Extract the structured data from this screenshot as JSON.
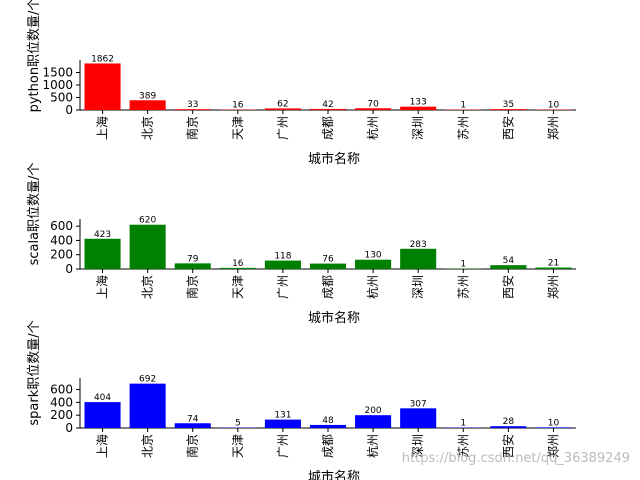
{
  "chart_data": [
    {
      "type": "bar",
      "categories": [
        "上海",
        "北京",
        "南京",
        "天津",
        "广州",
        "成都",
        "杭州",
        "深圳",
        "苏州",
        "西安",
        "郑州"
      ],
      "values": [
        1862,
        389,
        33,
        16,
        62,
        42,
        70,
        133,
        1,
        35,
        10
      ],
      "xlabel": "城市名称",
      "ylabel": "python职位数量/个",
      "yticks": [
        0,
        500,
        1000,
        1500
      ],
      "ylim": [
        0,
        2000
      ],
      "color": "#ff0000",
      "grid": false
    },
    {
      "type": "bar",
      "categories": [
        "上海",
        "北京",
        "南京",
        "天津",
        "广州",
        "成都",
        "杭州",
        "深圳",
        "苏州",
        "西安",
        "郑州"
      ],
      "values": [
        423,
        620,
        79,
        16,
        118,
        76,
        130,
        283,
        1,
        54,
        21
      ],
      "xlabel": "城市名称",
      "ylabel": "scala职位数量/个",
      "yticks": [
        0,
        200,
        400,
        600
      ],
      "ylim": [
        0,
        700
      ],
      "color": "#008000",
      "grid": false
    },
    {
      "type": "bar",
      "categories": [
        "上海",
        "北京",
        "南京",
        "天津",
        "广州",
        "成都",
        "杭州",
        "深圳",
        "苏州",
        "西安",
        "郑州"
      ],
      "values": [
        404,
        692,
        74,
        5,
        131,
        48,
        200,
        307,
        1,
        28,
        10
      ],
      "xlabel": "城市名称",
      "ylabel": "spark职位数量/个",
      "yticks": [
        0,
        200,
        400,
        600
      ],
      "ylim": [
        0,
        780
      ],
      "color": "#0000ff",
      "grid": false
    }
  ],
  "watermark": "https://blog.csdn.net/qq_36389249"
}
